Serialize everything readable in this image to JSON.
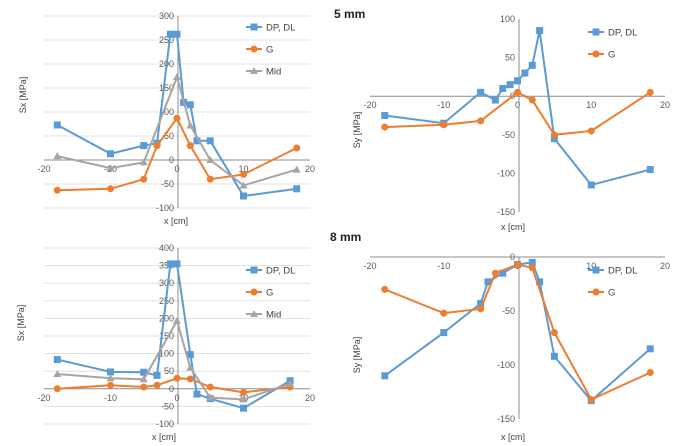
{
  "sections": [
    "5 mm",
    "8 mm"
  ],
  "colors": {
    "DP, DL": "#5b9bd5",
    "G": "#ed7d31",
    "Mid": "#a5a5a5"
  },
  "chart_data": [
    {
      "id": "tl",
      "type": "line",
      "section": "5 mm",
      "xlabel": "x [cm]",
      "ylabel": "Sx [MPa]",
      "xlim": [
        -20,
        20
      ],
      "ylim": [
        -100,
        300
      ],
      "xticks": [
        -20,
        -10,
        0,
        10,
        20
      ],
      "yticks": [
        -100,
        -50,
        0,
        50,
        100,
        150,
        200,
        250,
        300
      ],
      "grid": true,
      "legend": "top-right",
      "series": [
        {
          "name": "DP, DL",
          "marker": "square",
          "x": [
            -18,
            -10,
            -5,
            -3,
            -1,
            0,
            1,
            2,
            3,
            5,
            10,
            18
          ],
          "y": [
            73,
            13,
            30,
            35,
            262,
            262,
            120,
            115,
            40,
            40,
            -75,
            -60
          ]
        },
        {
          "name": "G",
          "marker": "circle",
          "x": [
            -18,
            -10,
            -5,
            -3,
            0,
            2,
            5,
            10,
            18
          ],
          "y": [
            -63,
            -60,
            -40,
            30,
            87,
            30,
            -40,
            -30,
            25
          ]
        },
        {
          "name": "Mid",
          "marker": "triangle",
          "x": [
            -18,
            -10,
            -5,
            0,
            2,
            5,
            10,
            18
          ],
          "y": [
            8,
            -17,
            -5,
            173,
            72,
            0,
            -53,
            -20
          ]
        }
      ]
    },
    {
      "id": "tr",
      "type": "line",
      "section": "5 mm",
      "xlabel": "x [cm]",
      "ylabel": "Sy [MPa]",
      "xlim": [
        -20,
        20
      ],
      "ylim": [
        -150,
        100
      ],
      "xticks": [
        -20,
        -10,
        0,
        10,
        20
      ],
      "yticks": [
        -150,
        -100,
        -50,
        0,
        50,
        100
      ],
      "grid": false,
      "legend": "top-right",
      "series": [
        {
          "name": "DP, DL",
          "marker": "square",
          "x": [
            -18,
            -10,
            -5,
            -3,
            -2,
            -1,
            0,
            1,
            2,
            3,
            5,
            10,
            18
          ],
          "y": [
            -25,
            -35,
            5,
            -5,
            10,
            15,
            20,
            30,
            40,
            85,
            -55,
            -115,
            -95
          ]
        },
        {
          "name": "G",
          "marker": "circle",
          "x": [
            -18,
            -10,
            -5,
            0,
            2,
            5,
            10,
            18
          ],
          "y": [
            -40,
            -37,
            -32,
            5,
            -5,
            -50,
            -45,
            5
          ]
        }
      ]
    },
    {
      "id": "bl",
      "type": "line",
      "section": "8 mm",
      "xlabel": "x [cm]",
      "ylabel": "Sx [MPa]",
      "xlim": [
        -20,
        20
      ],
      "ylim": [
        -100,
        400
      ],
      "xticks": [
        -20,
        -10,
        0,
        10,
        20
      ],
      "yticks": [
        -100,
        -50,
        0,
        50,
        100,
        150,
        200,
        250,
        300,
        350,
        400
      ],
      "grid": true,
      "legend": "top-right",
      "series": [
        {
          "name": "DP, DL",
          "marker": "square",
          "x": [
            -18,
            -10,
            -5,
            -3,
            -1,
            0,
            2,
            3,
            5,
            10,
            17
          ],
          "y": [
            83,
            48,
            47,
            38,
            355,
            355,
            97,
            -15,
            -28,
            -55,
            23
          ]
        },
        {
          "name": "G",
          "marker": "circle",
          "x": [
            -18,
            -10,
            -5,
            -3,
            0,
            2,
            5,
            10,
            17
          ],
          "y": [
            0,
            10,
            5,
            10,
            30,
            28,
            5,
            -10,
            5
          ]
        },
        {
          "name": "Mid",
          "marker": "triangle",
          "x": [
            -18,
            -10,
            -5,
            0,
            2,
            5,
            10,
            17
          ],
          "y": [
            42,
            30,
            27,
            193,
            60,
            -25,
            -30,
            15
          ]
        }
      ]
    },
    {
      "id": "br",
      "type": "line",
      "section": "8 mm",
      "xlabel": "x [cm]",
      "ylabel": "Sy [MPa]",
      "xlim": [
        -20,
        20
      ],
      "ylim": [
        -150,
        0
      ],
      "xticks": [
        -20,
        -10,
        0,
        10,
        20
      ],
      "yticks": [
        -150,
        -100,
        -50,
        0
      ],
      "grid": false,
      "legend": "top-right",
      "series": [
        {
          "name": "DP, DL",
          "marker": "square",
          "x": [
            -18,
            -10,
            -5,
            -4,
            -2,
            0,
            2,
            3,
            5,
            10,
            18
          ],
          "y": [
            -110,
            -70,
            -43,
            -23,
            -15,
            -7,
            -5,
            -23,
            -92,
            -133,
            -85
          ]
        },
        {
          "name": "G",
          "marker": "circle",
          "x": [
            -18,
            -10,
            -5,
            -3,
            0,
            2,
            5,
            10,
            18
          ],
          "y": [
            -30,
            -52,
            -48,
            -15,
            -7,
            -10,
            -70,
            -132,
            -107
          ]
        }
      ]
    }
  ]
}
